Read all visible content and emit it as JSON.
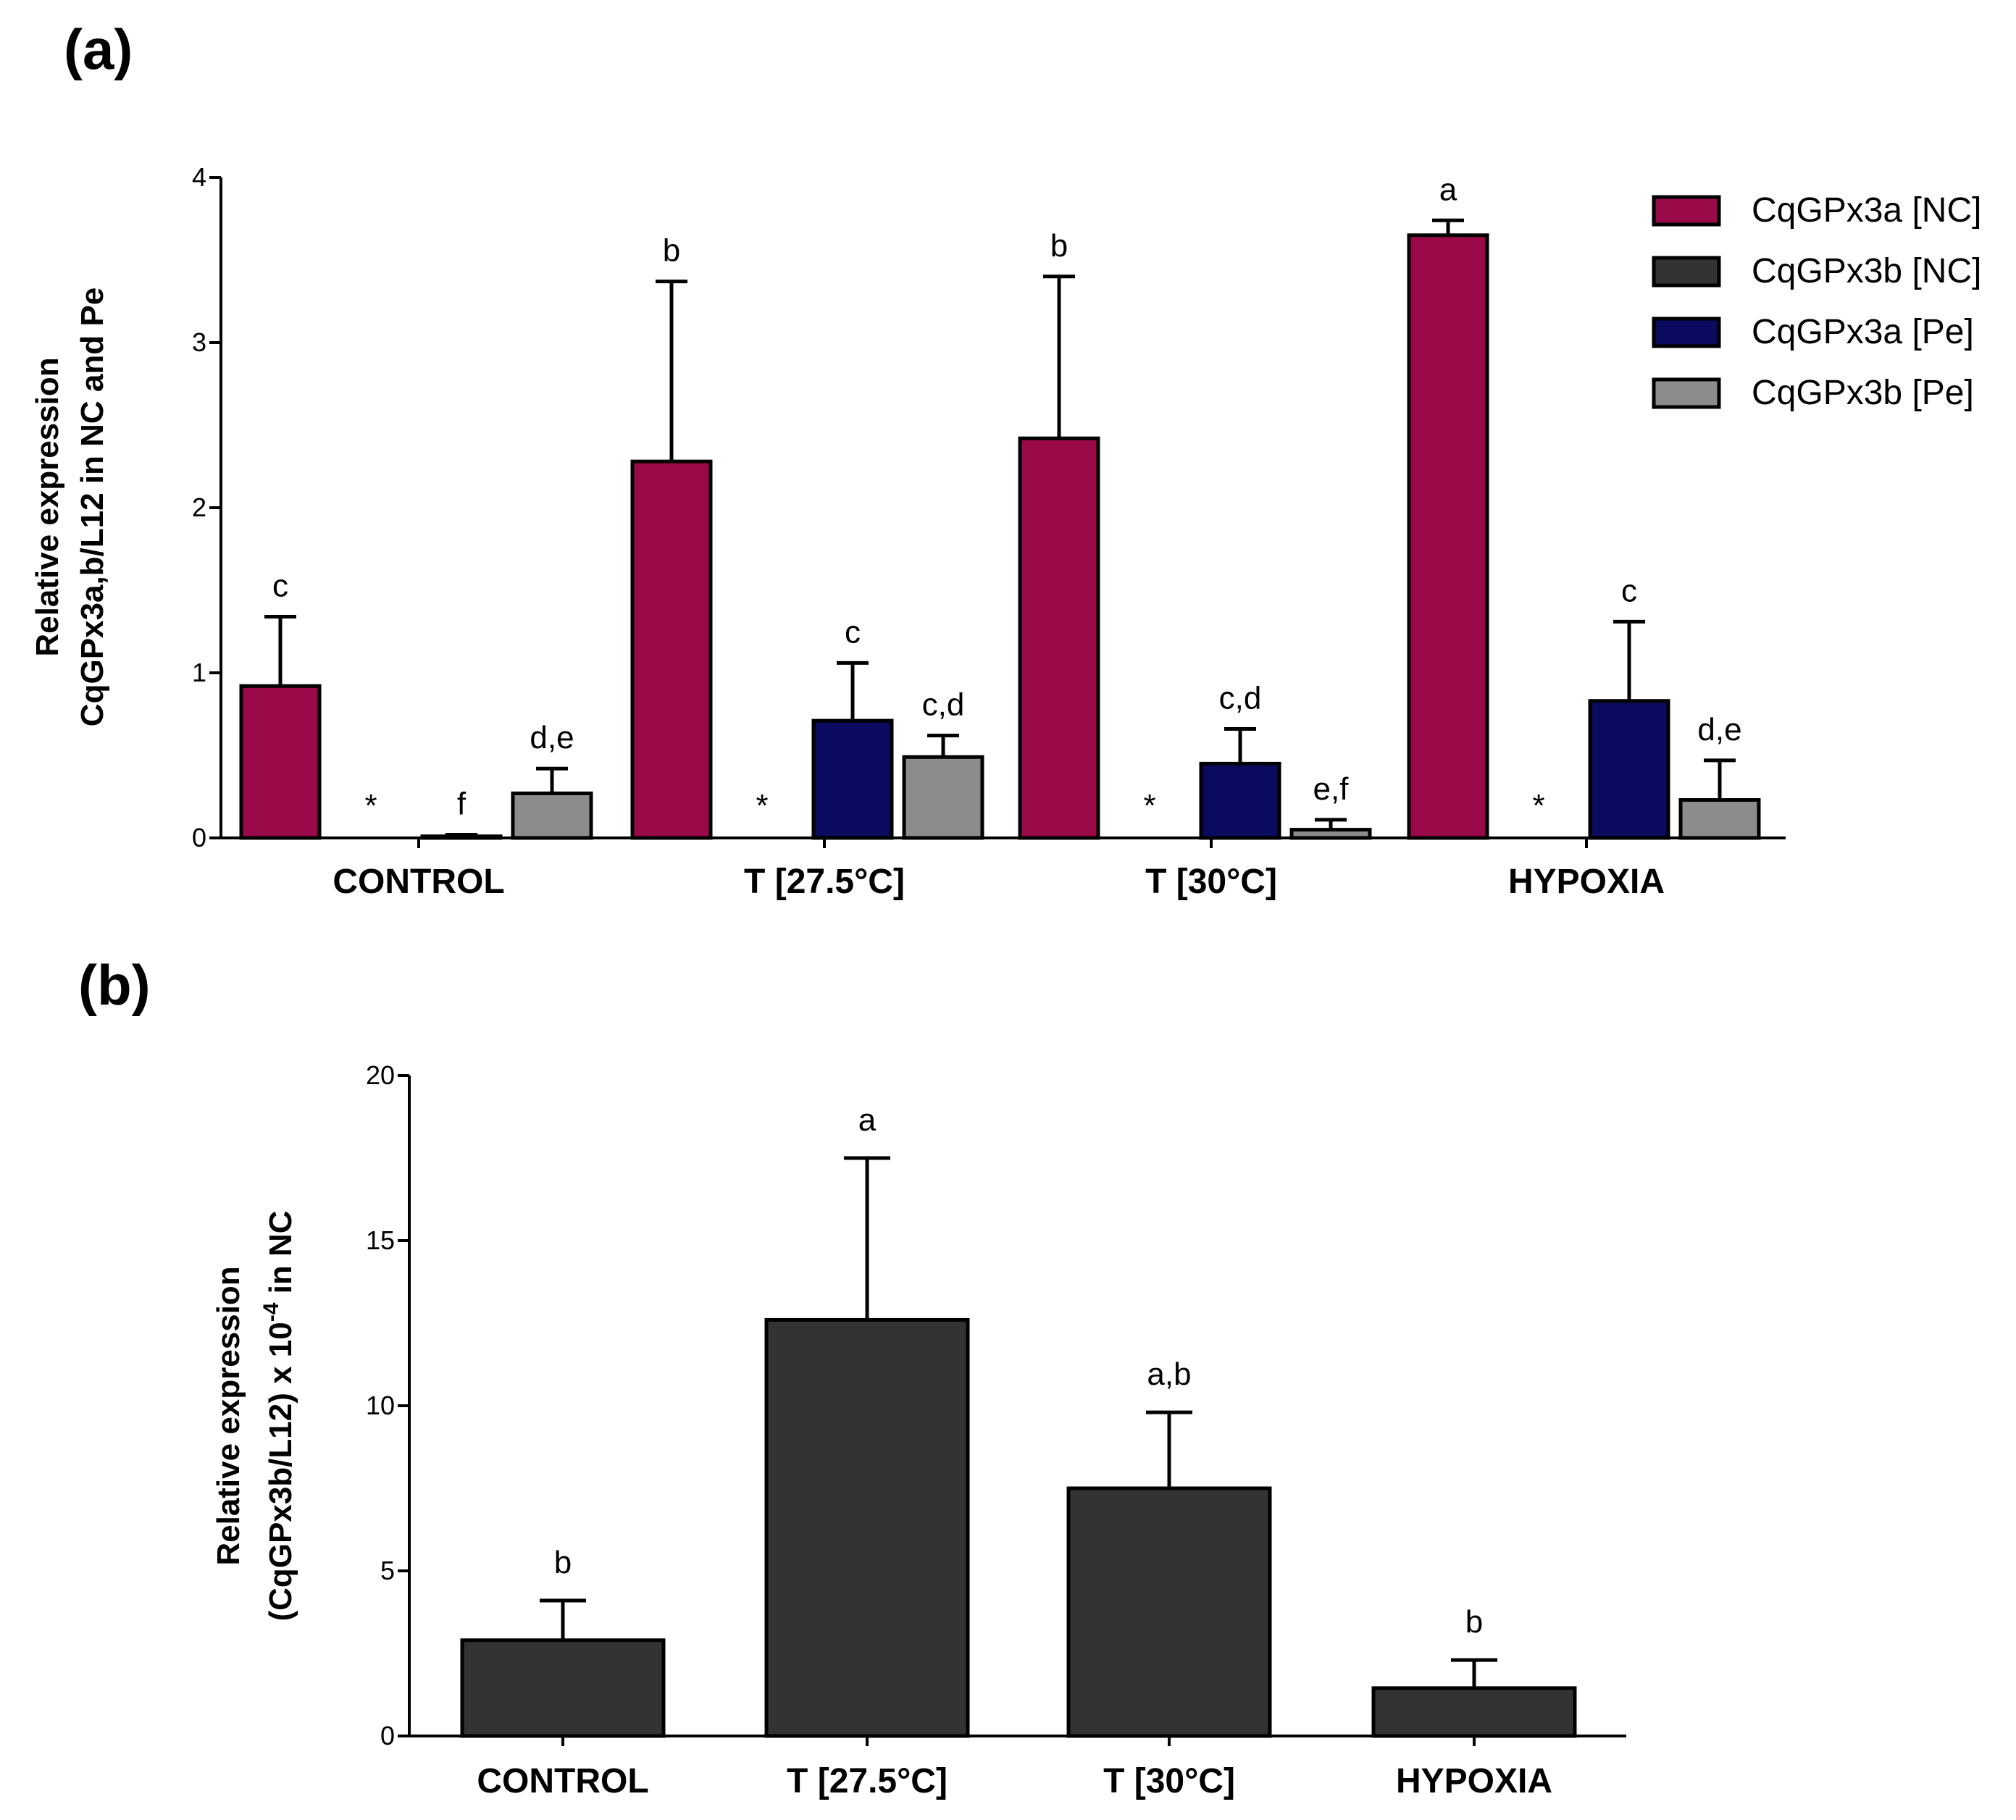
{
  "chart_data": [
    {
      "panel": "(a)",
      "type": "bar",
      "categories": [
        "CONTROL",
        "T [27.5°C]",
        "T [30°C]",
        "HYPOXIA"
      ],
      "ylabel_line1": "Relative expression",
      "ylabel_line2": "CqGPx3a,b/L12 in NC and Pe",
      "ylim": [
        0,
        4
      ],
      "yticks": [
        "0",
        "1",
        "2",
        "3",
        "4"
      ],
      "series": [
        {
          "name": "CqGPx3a [NC]",
          "color": "#9a0a48",
          "values": [
            0.92,
            2.28,
            2.42,
            3.65
          ],
          "errors": [
            0.42,
            1.09,
            0.98,
            0.09
          ],
          "labels": [
            "c",
            "b",
            "b",
            "a"
          ]
        },
        {
          "name": "CqGPx3b [NC]",
          "color": "#333333",
          "values": [
            0.0,
            0.0,
            0.0,
            0.0
          ],
          "errors": [
            0,
            0,
            0,
            0
          ],
          "labels": [
            "*",
            "*",
            "*",
            "*"
          ]
        },
        {
          "name": "CqGPx3a [Pe]",
          "color": "#0a0a5e",
          "values": [
            0.01,
            0.71,
            0.45,
            0.83
          ],
          "errors": [
            0.01,
            0.35,
            0.21,
            0.48
          ],
          "labels": [
            "f",
            "c",
            "c,d",
            "c"
          ]
        },
        {
          "name": "CqGPx3b [Pe]",
          "color": "#8c8c8c",
          "values": [
            0.27,
            0.49,
            0.05,
            0.23
          ],
          "errors": [
            0.15,
            0.13,
            0.06,
            0.24
          ],
          "labels": [
            "d,e",
            "c,d",
            "e,f",
            "d,e"
          ]
        }
      ]
    },
    {
      "panel": "(b)",
      "type": "bar",
      "categories": [
        "CONTROL",
        "T [27.5°C]",
        "T [30°C]",
        "HYPOXIA"
      ],
      "ylabel_line1": "Relative expression",
      "ylabel_line2": "(CqGPx3b/L12) x 10",
      "ylabel_sup": "-4",
      "ylabel_suffix": " in NC",
      "ylim": [
        0,
        20
      ],
      "yticks": [
        "0",
        "5",
        "10",
        "15",
        "20"
      ],
      "color": "#333333",
      "values": [
        2.9,
        12.6,
        7.5,
        1.45
      ],
      "errors": [
        1.2,
        4.9,
        2.3,
        0.85
      ],
      "labels": [
        "b",
        "a",
        "a,b",
        "b"
      ]
    }
  ]
}
